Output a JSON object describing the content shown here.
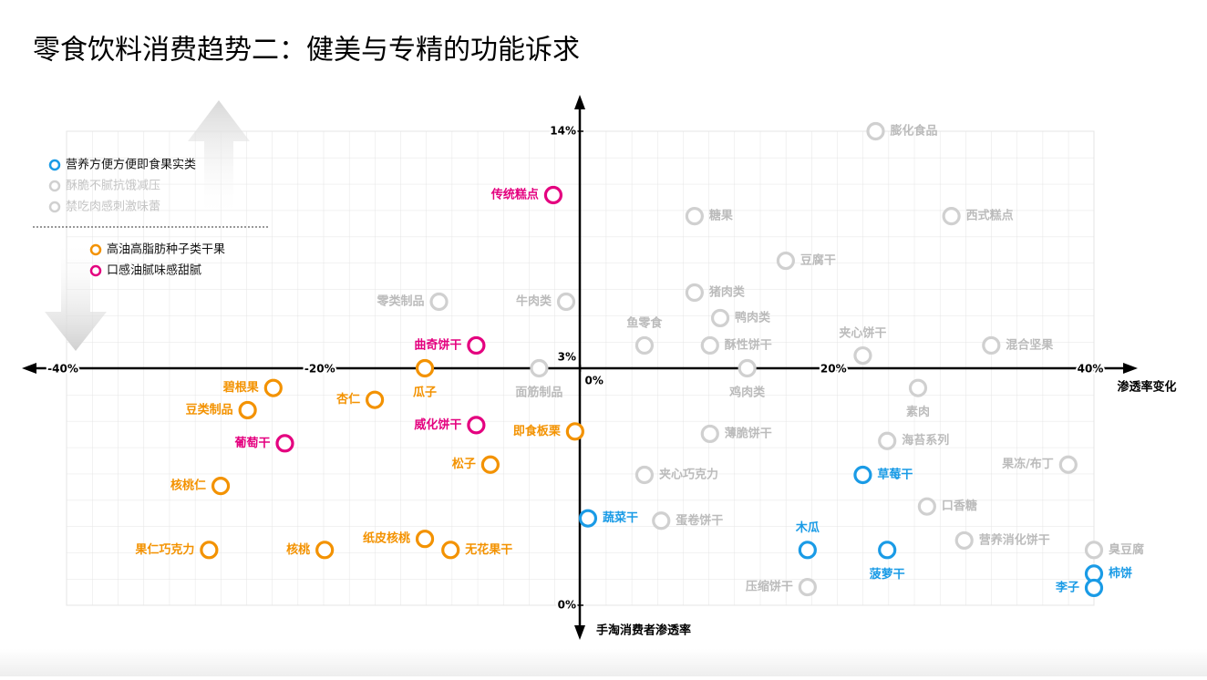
{
  "chart_data": {
    "type": "scatter",
    "title": "零食饮料消费趋势二：健美与专精的功能诉求",
    "x_label": "渗透率变化",
    "y_label": "手淘消费者渗透率",
    "xlim": [
      -40,
      40
    ],
    "xticks": [
      {
        "value": -40,
        "label": "-40%"
      },
      {
        "value": -20,
        "label": "-20%"
      },
      {
        "value": 0,
        "label": "0%"
      },
      {
        "value": 20,
        "label": "20%"
      },
      {
        "value": 40,
        "label": "40%"
      }
    ],
    "ylim": [
      0,
      14
    ],
    "yticks": [
      {
        "value": 0,
        "label": "0%"
      },
      {
        "value": 3,
        "label": "3%"
      },
      {
        "value": 14,
        "label": "14%"
      }
    ],
    "grid": true,
    "legend": "upper left",
    "series": [
      {
        "name": "营养方便方便即食果实类",
        "color": "#1a9be6",
        "label_color": "#1a9be6",
        "labels": [
          "草莓干",
          "蔬菜干",
          "木瓜",
          "菠萝干",
          "柿饼",
          "李子"
        ],
        "x": [
          22.0,
          0.6,
          17.7,
          23.9,
          40.0,
          40.0
        ],
        "values": [
          1.65,
          1.1,
          0.7,
          0.7,
          0.4,
          0.22
        ]
      },
      {
        "name": "酥脆不腻抗饿减压",
        "color": "#d0d0d0",
        "label_color": "#bbbbbb",
        "labels": [
          "膨化食品",
          "西式糕点",
          "糖果",
          "豆腐干",
          "夹心饼干",
          "混合坚果",
          "面筋制品",
          "酥性饼干",
          "薄脆饼干",
          "夹心巧克力",
          "蛋卷饼干",
          "海苔系列",
          "果冻/布丁",
          "口香糖",
          "营养消化饼干",
          "压缩饼干",
          "臭豆腐"
        ],
        "x": [
          23.0,
          28.9,
          8.9,
          16.0,
          22.0,
          32.0,
          -3.2,
          10.1,
          10.1,
          5.0,
          6.3,
          23.9,
          38.0,
          27.0,
          29.9,
          17.7,
          40.0
        ],
        "values": [
          14.0,
          10.06,
          10.06,
          7.99,
          3.59,
          4.06,
          3.0,
          4.06,
          2.17,
          1.65,
          1.07,
          2.08,
          1.78,
          1.25,
          0.82,
          0.23,
          0.7
        ]
      },
      {
        "name": "禁吃肉感刺激味蕾",
        "color": "#d0d0d0",
        "label_color": "#bbbbbb",
        "labels": [
          "零类制品",
          "牛肉类",
          "猪肉类",
          "鸭肉类",
          "鱼零食",
          "鸡肉类",
          "素肉"
        ],
        "x": [
          -11.0,
          -1.1,
          8.9,
          10.9,
          5.0,
          13.0,
          26.3
        ],
        "values": [
          6.09,
          6.09,
          6.51,
          5.33,
          4.06,
          3.0,
          2.75
        ]
      },
      {
        "name": "高油高脂肪种子类干果",
        "color": "#f39200",
        "label_color": "#f39200",
        "labels": [
          "瓜子",
          "碧根果",
          "杏仁",
          "豆类制品",
          "即食板栗",
          "松子",
          "核桃仁",
          "纸皮核桃",
          "无花果干",
          "核桃",
          "果仁巧克力"
        ],
        "x": [
          -12.1,
          -23.9,
          -16.0,
          -25.9,
          -0.4,
          -7.0,
          -28.0,
          -12.1,
          -10.1,
          -19.9,
          -28.9
        ],
        "values": [
          3.0,
          2.75,
          2.6,
          2.47,
          2.2,
          1.78,
          1.51,
          0.84,
          0.7,
          0.7,
          0.7
        ]
      },
      {
        "name": "口感油腻味感甜腻",
        "color": "#e4007f",
        "label_color": "#e4007f",
        "labels": [
          "传统糕点",
          "曲奇饼干",
          "威化饼干",
          "葡萄干"
        ],
        "x": [
          -2.1,
          -8.1,
          -8.1,
          -23.0
        ],
        "values": [
          11.04,
          4.06,
          2.28,
          2.05
        ]
      }
    ]
  }
}
